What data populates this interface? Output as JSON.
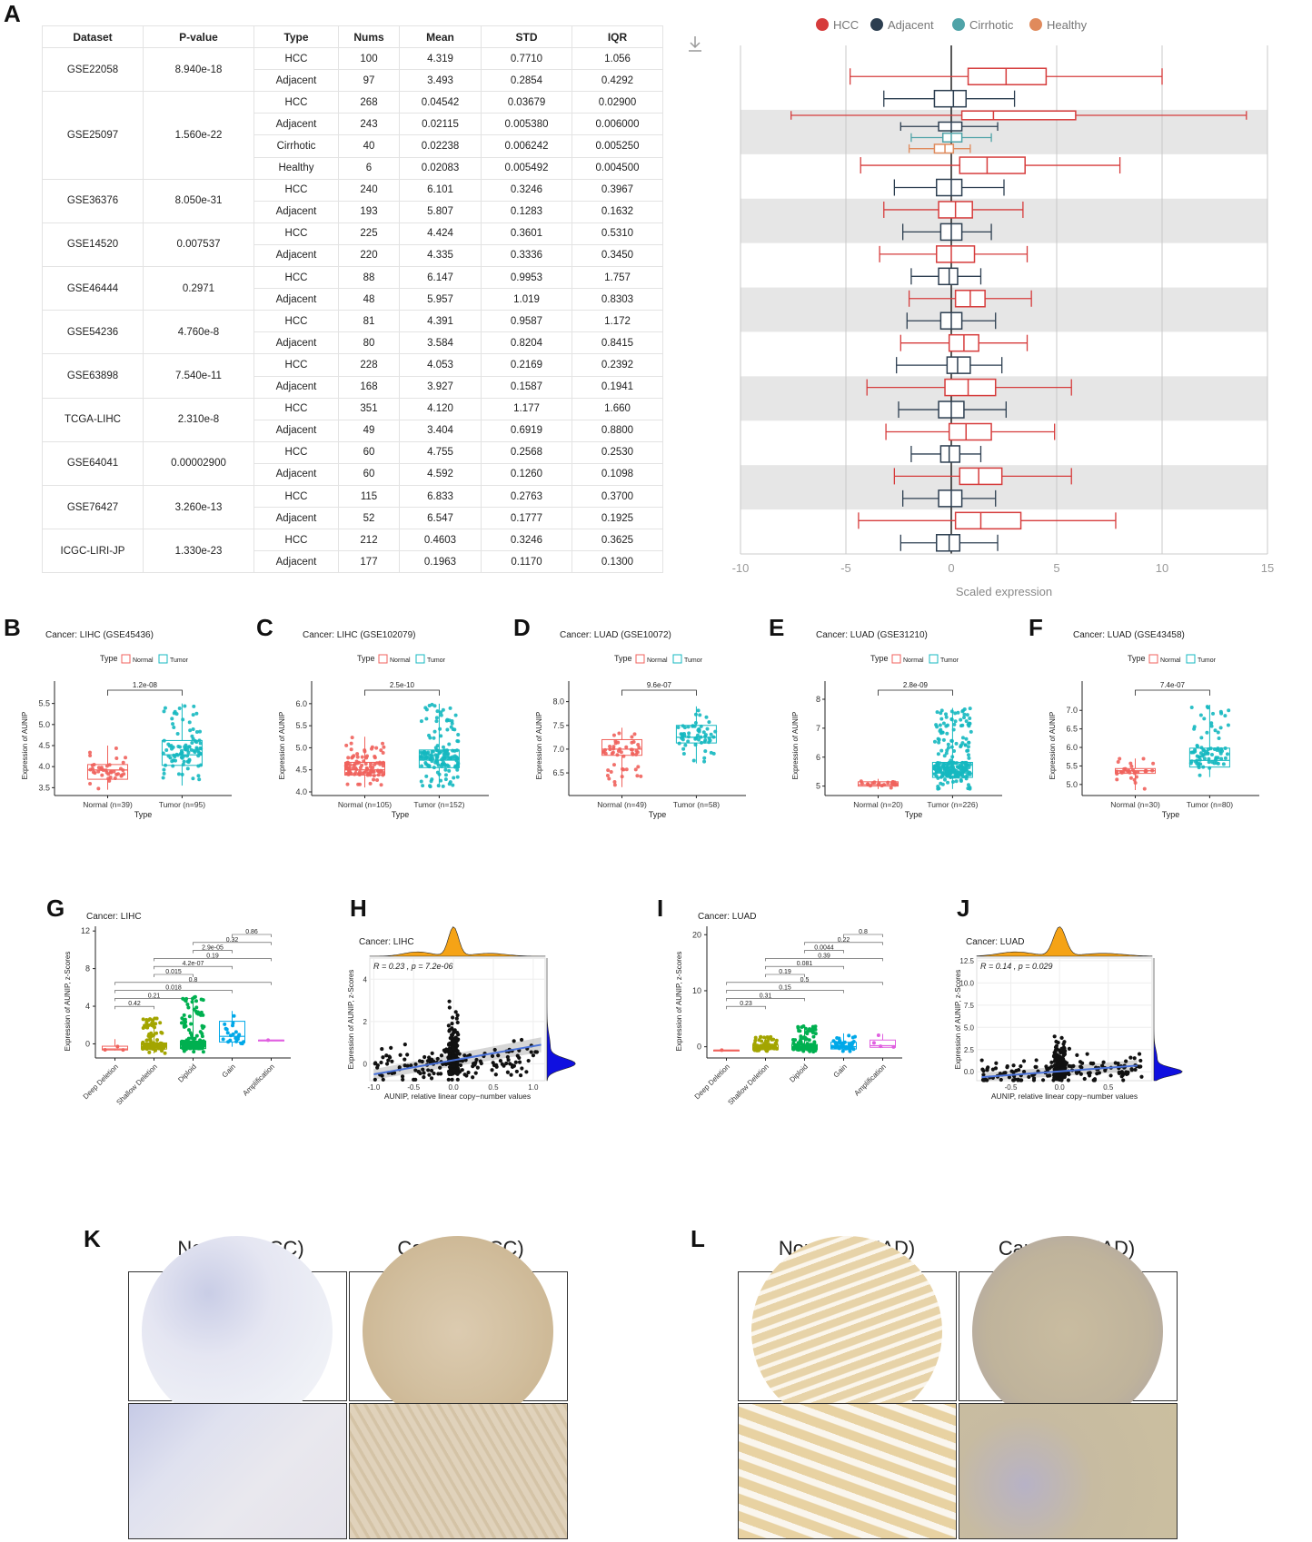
{
  "panel_labels": {
    "A": "A",
    "B": "B",
    "C": "C",
    "D": "D",
    "E": "E",
    "F": "F",
    "G": "G",
    "H": "H",
    "I": "I",
    "J": "J",
    "K": "K",
    "L": "L"
  },
  "colors": {
    "hcc": "#d63c3c",
    "adjacent": "#2c3e50",
    "cirrhotic": "#4fa3a8",
    "healthy": "#e08a5c",
    "normal": "#f0625c",
    "tumor": "#15b8c0",
    "density_top": "#f5a316",
    "density_right": "#1010e0"
  },
  "table": {
    "headers": [
      "Dataset",
      "P-value",
      "Type",
      "Nums",
      "Mean",
      "STD",
      "IQR"
    ],
    "groups": [
      {
        "dataset": "GSE22058",
        "pvalue": "8.940e-18",
        "rows": [
          [
            "HCC",
            "100",
            "4.319",
            "0.7710",
            "1.056"
          ],
          [
            "Adjacent",
            "97",
            "3.493",
            "0.2854",
            "0.4292"
          ]
        ]
      },
      {
        "dataset": "GSE25097",
        "pvalue": "1.560e-22",
        "rows": [
          [
            "HCC",
            "268",
            "0.04542",
            "0.03679",
            "0.02900"
          ],
          [
            "Adjacent",
            "243",
            "0.02115",
            "0.005380",
            "0.006000"
          ],
          [
            "Cirrhotic",
            "40",
            "0.02238",
            "0.006242",
            "0.005250"
          ],
          [
            "Healthy",
            "6",
            "0.02083",
            "0.005492",
            "0.004500"
          ]
        ]
      },
      {
        "dataset": "GSE36376",
        "pvalue": "8.050e-31",
        "rows": [
          [
            "HCC",
            "240",
            "6.101",
            "0.3246",
            "0.3967"
          ],
          [
            "Adjacent",
            "193",
            "5.807",
            "0.1283",
            "0.1632"
          ]
        ]
      },
      {
        "dataset": "GSE14520",
        "pvalue": "0.007537",
        "rows": [
          [
            "HCC",
            "225",
            "4.424",
            "0.3601",
            "0.5310"
          ],
          [
            "Adjacent",
            "220",
            "4.335",
            "0.3336",
            "0.3450"
          ]
        ]
      },
      {
        "dataset": "GSE46444",
        "pvalue": "0.2971",
        "rows": [
          [
            "HCC",
            "88",
            "6.147",
            "0.9953",
            "1.757"
          ],
          [
            "Adjacent",
            "48",
            "5.957",
            "1.019",
            "0.8303"
          ]
        ]
      },
      {
        "dataset": "GSE54236",
        "pvalue": "4.760e-8",
        "rows": [
          [
            "HCC",
            "81",
            "4.391",
            "0.9587",
            "1.172"
          ],
          [
            "Adjacent",
            "80",
            "3.584",
            "0.8204",
            "0.8415"
          ]
        ]
      },
      {
        "dataset": "GSE63898",
        "pvalue": "7.540e-11",
        "rows": [
          [
            "HCC",
            "228",
            "4.053",
            "0.2169",
            "0.2392"
          ],
          [
            "Adjacent",
            "168",
            "3.927",
            "0.1587",
            "0.1941"
          ]
        ]
      },
      {
        "dataset": "TCGA-LIHC",
        "pvalue": "2.310e-8",
        "rows": [
          [
            "HCC",
            "351",
            "4.120",
            "1.177",
            "1.660"
          ],
          [
            "Adjacent",
            "49",
            "3.404",
            "0.6919",
            "0.8800"
          ]
        ]
      },
      {
        "dataset": "GSE64041",
        "pvalue": "0.00002900",
        "rows": [
          [
            "HCC",
            "60",
            "4.755",
            "0.2568",
            "0.2530"
          ],
          [
            "Adjacent",
            "60",
            "4.592",
            "0.1260",
            "0.1098"
          ]
        ]
      },
      {
        "dataset": "GSE76427",
        "pvalue": "3.260e-13",
        "rows": [
          [
            "HCC",
            "115",
            "6.833",
            "0.2763",
            "0.3700"
          ],
          [
            "Adjacent",
            "52",
            "6.547",
            "0.1777",
            "0.1925"
          ]
        ]
      },
      {
        "dataset": "ICGC-LIRI-JP",
        "pvalue": "1.330e-23",
        "rows": [
          [
            "HCC",
            "212",
            "0.4603",
            "0.3246",
            "0.3625"
          ],
          [
            "Adjacent",
            "177",
            "0.1963",
            "0.1170",
            "0.1300"
          ]
        ]
      }
    ]
  },
  "chart_data": [
    {
      "id": "A",
      "type": "boxplot-horizontal",
      "xlabel": "Scaled expression",
      "xlim": [
        -10,
        15
      ],
      "xticks": [
        -10,
        -5,
        0,
        5,
        10,
        15
      ],
      "legend": [
        "HCC",
        "Adjacent",
        "Cirrhotic",
        "Healthy"
      ],
      "shaded_datasets": [
        1,
        3,
        5,
        7,
        9
      ],
      "boxes": [
        {
          "dataset": 0,
          "type": "HCC",
          "min": -4.8,
          "q1": 0.8,
          "med": 2.6,
          "q3": 4.5,
          "max": 10
        },
        {
          "dataset": 0,
          "type": "Adjacent",
          "min": -3.2,
          "q1": -0.8,
          "med": 0.1,
          "q3": 0.7,
          "max": 3
        },
        {
          "dataset": 1,
          "type": "HCC",
          "min": -7.6,
          "q1": 0.5,
          "med": 2,
          "q3": 5.9,
          "max": 14
        },
        {
          "dataset": 1,
          "type": "Adjacent",
          "min": -2.4,
          "q1": -0.6,
          "med": 0,
          "q3": 0.5,
          "max": 2.2
        },
        {
          "dataset": 1,
          "type": "Cirrhotic",
          "min": -1.9,
          "q1": -0.4,
          "med": 0,
          "q3": 0.5,
          "max": 1.9
        },
        {
          "dataset": 1,
          "type": "Healthy",
          "min": -2,
          "q1": -0.8,
          "med": -0.3,
          "q3": 0.1,
          "max": 0.9
        },
        {
          "dataset": 2,
          "type": "HCC",
          "min": -4.3,
          "q1": 0.4,
          "med": 1.7,
          "q3": 3.5,
          "max": 8
        },
        {
          "dataset": 2,
          "type": "Adjacent",
          "min": -2.7,
          "q1": -0.7,
          "med": 0,
          "q3": 0.5,
          "max": 2.5
        },
        {
          "dataset": 3,
          "type": "HCC",
          "min": -3.2,
          "q1": -0.6,
          "med": 0.2,
          "q3": 1,
          "max": 3.4
        },
        {
          "dataset": 3,
          "type": "Adjacent",
          "min": -2.3,
          "q1": -0.5,
          "med": 0,
          "q3": 0.5,
          "max": 1.9
        },
        {
          "dataset": 4,
          "type": "HCC",
          "min": -3.4,
          "q1": -0.7,
          "med": 0,
          "q3": 1.1,
          "max": 3.6
        },
        {
          "dataset": 4,
          "type": "Adjacent",
          "min": -1.9,
          "q1": -0.6,
          "med": -0.1,
          "q3": 0.3,
          "max": 1.4
        },
        {
          "dataset": 5,
          "type": "HCC",
          "min": -2,
          "q1": 0.2,
          "med": 0.9,
          "q3": 1.6,
          "max": 3.8
        },
        {
          "dataset": 5,
          "type": "Adjacent",
          "min": -2.1,
          "q1": -0.5,
          "med": 0,
          "q3": 0.5,
          "max": 2.1
        },
        {
          "dataset": 6,
          "type": "HCC",
          "min": -2.4,
          "q1": -0.1,
          "med": 0.6,
          "q3": 1.3,
          "max": 3.6
        },
        {
          "dataset": 6,
          "type": "Adjacent",
          "min": -2.6,
          "q1": -0.2,
          "med": 0.3,
          "q3": 0.9,
          "max": 2.4
        },
        {
          "dataset": 7,
          "type": "HCC",
          "min": -4,
          "q1": -0.3,
          "med": 0.8,
          "q3": 2.1,
          "max": 5.7
        },
        {
          "dataset": 7,
          "type": "Adjacent",
          "min": -2.5,
          "q1": -0.6,
          "med": 0,
          "q3": 0.6,
          "max": 2.6
        },
        {
          "dataset": 8,
          "type": "HCC",
          "min": -3.1,
          "q1": -0.1,
          "med": 0.7,
          "q3": 1.9,
          "max": 4.9
        },
        {
          "dataset": 8,
          "type": "Adjacent",
          "min": -1.9,
          "q1": -0.5,
          "med": -0.1,
          "q3": 0.4,
          "max": 1.4
        },
        {
          "dataset": 9,
          "type": "HCC",
          "min": -2.7,
          "q1": 0.4,
          "med": 1.3,
          "q3": 2.4,
          "max": 5.7
        },
        {
          "dataset": 9,
          "type": "Adjacent",
          "min": -2.3,
          "q1": -0.6,
          "med": 0,
          "q3": 0.5,
          "max": 2.1
        },
        {
          "dataset": 10,
          "type": "HCC",
          "min": -4.4,
          "q1": 0.2,
          "med": 1.4,
          "q3": 3.3,
          "max": 7.8
        },
        {
          "dataset": 10,
          "type": "Adjacent",
          "min": -2.4,
          "q1": -0.7,
          "med": -0.1,
          "q3": 0.4,
          "max": 2.2
        }
      ]
    },
    {
      "id": "B",
      "type": "box-jitter",
      "title": "Cancer: LIHC (GSE45436)",
      "ylabel": "Expression of AUNIP",
      "xlabel": "Type",
      "legend_title": "Type",
      "legend": [
        "Normal",
        "Tumor"
      ],
      "categories": [
        "Normal (n=39)",
        "Tumor (n=95)"
      ],
      "pvalue": "1.2e-08",
      "ylim": [
        3.4,
        5.6
      ],
      "yticks": [
        "3.5",
        "4.0",
        "4.5",
        "5.0",
        "5.5"
      ],
      "boxes": [
        {
          "min": 3.45,
          "q1": 3.7,
          "med": 3.92,
          "q3": 4.05,
          "max": 4.5
        },
        {
          "min": 3.55,
          "q1": 4.03,
          "med": 4.28,
          "q3": 4.62,
          "max": 5.5
        }
      ],
      "n": [
        39,
        95
      ]
    },
    {
      "id": "C",
      "type": "box-jitter",
      "title": "Cancer: LIHC (GSE102079)",
      "ylabel": "Expression of AUNIP",
      "xlabel": "Type",
      "legend_title": "Type",
      "legend": [
        "Normal",
        "Tumor"
      ],
      "categories": [
        "Normal (n=105)",
        "Tumor (n=152)"
      ],
      "pvalue": "2.5e-10",
      "ylim": [
        4.0,
        6.1
      ],
      "yticks": [
        "4.0",
        "4.5",
        "5.0",
        "5.5",
        "6.0"
      ],
      "boxes": [
        {
          "min": 4.1,
          "q1": 4.38,
          "med": 4.5,
          "q3": 4.67,
          "max": 5.25
        },
        {
          "min": 4.1,
          "q1": 4.55,
          "med": 4.72,
          "q3": 4.95,
          "max": 6.0
        }
      ],
      "n": [
        105,
        152
      ]
    },
    {
      "id": "D",
      "type": "box-jitter",
      "title": "Cancer: LUAD (GSE10072)",
      "ylabel": "Expression of AUNIP",
      "xlabel": "Type",
      "legend_title": "Type",
      "legend": [
        "Normal",
        "Tumor"
      ],
      "categories": [
        "Normal (n=49)",
        "Tumor (n=58)"
      ],
      "pvalue": "9.6e-07",
      "ylim": [
        6.1,
        8.05
      ],
      "yticks": [
        "6.5",
        "7.0",
        "7.5",
        "8.0"
      ],
      "boxes": [
        {
          "min": 6.2,
          "q1": 6.87,
          "med": 7.0,
          "q3": 7.2,
          "max": 7.45
        },
        {
          "min": 6.7,
          "q1": 7.13,
          "med": 7.25,
          "q3": 7.5,
          "max": 7.9
        }
      ],
      "n": [
        49,
        58
      ]
    },
    {
      "id": "E",
      "type": "box-jitter",
      "title": "Cancer: LUAD (GSE31210)",
      "ylabel": "Expression of AUNIP",
      "xlabel": "Type",
      "legend_title": "Type",
      "legend": [
        "Normal",
        "Tumor"
      ],
      "categories": [
        "Normal (n=20)",
        "Tumor (n=226)"
      ],
      "pvalue": "2.8e-09",
      "ylim": [
        4.8,
        8.0
      ],
      "yticks": [
        "5",
        "6",
        "7",
        "8"
      ],
      "boxes": [
        {
          "min": 4.9,
          "q1": 5.0,
          "med": 5.05,
          "q3": 5.15,
          "max": 5.25
        },
        {
          "min": 4.9,
          "q1": 5.3,
          "med": 5.45,
          "q3": 5.82,
          "max": 7.7
        }
      ],
      "n": [
        20,
        226
      ]
    },
    {
      "id": "F",
      "type": "box-jitter",
      "title": "Cancer: LUAD (GSE43458)",
      "ylabel": "Expression of AUNIP",
      "xlabel": "Type",
      "legend_title": "Type",
      "legend": [
        "Normal",
        "Tumor"
      ],
      "categories": [
        "Normal (n=30)",
        "Tumor (n=80)"
      ],
      "pvalue": "7.4e-07",
      "ylim": [
        4.8,
        7.3
      ],
      "yticks": [
        "5.0",
        "5.5",
        "6.0",
        "6.5",
        "7.0"
      ],
      "boxes": [
        {
          "min": 4.85,
          "q1": 5.3,
          "med": 5.37,
          "q3": 5.43,
          "max": 5.7
        },
        {
          "min": 5.2,
          "q1": 5.47,
          "med": 5.65,
          "q3": 5.98,
          "max": 7.15
        }
      ],
      "n": [
        30,
        80
      ]
    },
    {
      "id": "G",
      "type": "box-jitter-multi",
      "title": "Cancer: LIHC",
      "ylabel": "Expression of AUNIP, z-Scores",
      "categories": [
        "Deep Deletion",
        "Shallow Deletion",
        "Diploid",
        "Gain",
        "Amplification"
      ],
      "ylim": [
        -1.5,
        12.5
      ],
      "yticks": [
        "0",
        "4",
        "8",
        "12"
      ],
      "colors": [
        "#f0625c",
        "#a3a500",
        "#00b050",
        "#00a8e8",
        "#e060e0"
      ],
      "boxes": [
        {
          "min": -0.7,
          "q1": -0.65,
          "med": -0.55,
          "q3": -0.25,
          "max": 0.5
        },
        {
          "min": -1,
          "q1": -0.55,
          "med": -0.3,
          "q3": 0.1,
          "max": 2.8
        },
        {
          "min": -1,
          "q1": -0.5,
          "med": -0.15,
          "q3": 0.3,
          "max": 5
        },
        {
          "min": -0.3,
          "q1": 0.2,
          "med": 0.8,
          "q3": 2.4,
          "max": 3.5
        },
        {
          "min": 0.4,
          "q1": 0.4,
          "med": 0.4,
          "q3": 0.4,
          "max": 0.4
        }
      ],
      "comparisons": [
        {
          "a": 0,
          "b": 1,
          "p": "0.42"
        },
        {
          "a": 0,
          "b": 2,
          "p": "0.21"
        },
        {
          "a": 0,
          "b": 3,
          "p": "0.018"
        },
        {
          "a": 0,
          "b": 4,
          "p": "0.8"
        },
        {
          "a": 1,
          "b": 2,
          "p": "0.015"
        },
        {
          "a": 1,
          "b": 3,
          "p": "4.2e-07"
        },
        {
          "a": 1,
          "b": 4,
          "p": "0.19"
        },
        {
          "a": 2,
          "b": 3,
          "p": "2.9e-05"
        },
        {
          "a": 2,
          "b": 4,
          "p": "0.32"
        },
        {
          "a": 3,
          "b": 4,
          "p": "0.86"
        }
      ]
    },
    {
      "id": "H",
      "type": "scatter-regression",
      "title": "Cancer: LIHC",
      "stat": "R = 0.23 , p = 7.2e-06",
      "xlabel": "AUNIP, relative linear copy−number values",
      "ylabel": "Expression of AUNIP, z-Scores",
      "xlim": [
        -1.05,
        1.15
      ],
      "ylim": [
        -0.8,
        5
      ],
      "xticks": [
        "-1.0",
        "-0.5",
        "0.0",
        "0.5",
        "1.0"
      ],
      "yticks": [
        "0",
        "2",
        "4"
      ],
      "fit": [
        [
          -1,
          -0.5
        ],
        [
          1.1,
          0.9
        ]
      ]
    },
    {
      "id": "I",
      "type": "box-jitter-multi",
      "title": "Cancer: LUAD",
      "ylabel": "Expression of AUNIP, z-Scores",
      "categories": [
        "Deep Deletion",
        "Shallow Deletion",
        "Diploid",
        "Gain",
        "Amplification"
      ],
      "ylim": [
        -2,
        21.5
      ],
      "yticks": [
        "0",
        "10",
        "20"
      ],
      "colors": [
        "#f0625c",
        "#a3a500",
        "#00b050",
        "#00a8e8",
        "#e060e0"
      ],
      "boxes": [
        {
          "min": -0.6,
          "q1": -0.6,
          "med": -0.6,
          "q3": -0.6,
          "max": -0.6
        },
        {
          "min": -0.9,
          "q1": -0.5,
          "med": -0.2,
          "q3": 0.3,
          "max": 1.8
        },
        {
          "min": -0.9,
          "q1": -0.5,
          "med": -0.1,
          "q3": 0.4,
          "max": 3.7
        },
        {
          "min": -0.9,
          "q1": -0.4,
          "med": 0,
          "q3": 0.8,
          "max": 2.4
        },
        {
          "min": -0.2,
          "q1": -0.1,
          "med": 0.2,
          "q3": 1.2,
          "max": 2.3
        }
      ],
      "comparisons": [
        {
          "a": 0,
          "b": 1,
          "p": "0.23"
        },
        {
          "a": 0,
          "b": 2,
          "p": "0.31"
        },
        {
          "a": 0,
          "b": 3,
          "p": "0.15"
        },
        {
          "a": 0,
          "b": 4,
          "p": "0.5"
        },
        {
          "a": 1,
          "b": 2,
          "p": "0.19"
        },
        {
          "a": 1,
          "b": 3,
          "p": "0.081"
        },
        {
          "a": 1,
          "b": 4,
          "p": "0.39"
        },
        {
          "a": 2,
          "b": 3,
          "p": "0.0044"
        },
        {
          "a": 2,
          "b": 4,
          "p": "0.22"
        },
        {
          "a": 3,
          "b": 4,
          "p": "0.8"
        }
      ]
    },
    {
      "id": "J",
      "type": "scatter-regression",
      "title": "Cancer: LUAD",
      "stat": "R = 0.14 , p = 0.029",
      "xlabel": "AUNIP, relative linear copy−number values",
      "ylabel": "Expression of AUNIP, z-Scores",
      "xlim": [
        -0.85,
        0.95
      ],
      "ylim": [
        -1,
        12.8
      ],
      "xticks": [
        "-0.5",
        "0.0",
        "0.5"
      ],
      "yticks": [
        "0.0",
        "2.5",
        "5.0",
        "7.5",
        "10.0",
        "12.5"
      ],
      "fit": [
        [
          -0.8,
          -0.6
        ],
        [
          0.8,
          0.7
        ]
      ]
    }
  ],
  "ihc": {
    "K": {
      "titles": [
        "Normal (HCC)",
        "Cancer (HCC)"
      ]
    },
    "L": {
      "titles": [
        "Normal (LUAD)",
        "Cancer (LUAD)"
      ]
    }
  }
}
